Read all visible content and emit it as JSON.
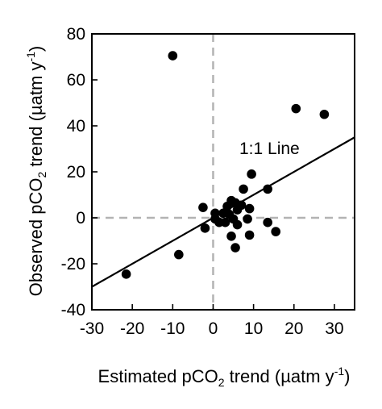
{
  "chart_data": {
    "type": "scatter",
    "xlabel": {
      "prefix": "Estimated pCO",
      "sub": "2",
      "mid": " trend (",
      "mu": "µ",
      "unit": "atm y",
      "sup": "-1",
      "suffix": ")"
    },
    "ylabel": {
      "prefix": "Observed pCO",
      "sub": "2",
      "mid": " trend (",
      "mu": "µ",
      "unit": "atm y",
      "sup": "-1",
      "suffix": ")"
    },
    "xlim": [
      -30,
      35
    ],
    "ylim": [
      -40,
      80
    ],
    "xticks": [
      -30,
      -20,
      -10,
      0,
      10,
      20,
      30
    ],
    "yticks": [
      -40,
      -20,
      0,
      20,
      40,
      60,
      80
    ],
    "xtick_labels": [
      "-30",
      "-20",
      "-10",
      "0",
      "10",
      "20",
      "30"
    ],
    "ytick_labels": [
      "-40",
      "-20",
      "0",
      "20",
      "40",
      "60",
      "80"
    ],
    "reference_lines": {
      "x_zero": true,
      "y_zero": true,
      "style": "dashed",
      "color": "#b3b3b3"
    },
    "one_to_one_line": {
      "label": "1:1 Line",
      "x": [
        -30,
        35
      ],
      "y": [
        -30,
        35
      ]
    },
    "points": [
      {
        "x": -10,
        "y": 70.5
      },
      {
        "x": 20.5,
        "y": 47.5
      },
      {
        "x": 27.5,
        "y": 45
      },
      {
        "x": 9.5,
        "y": 19
      },
      {
        "x": 13.5,
        "y": 12.5
      },
      {
        "x": 7.5,
        "y": 12.5
      },
      {
        "x": -2.5,
        "y": 4.5
      },
      {
        "x": 3.5,
        "y": 5
      },
      {
        "x": 4.5,
        "y": 7.5
      },
      {
        "x": 5.5,
        "y": 6.5
      },
      {
        "x": 7,
        "y": 5.5
      },
      {
        "x": 9,
        "y": 4
      },
      {
        "x": 6,
        "y": 3.5
      },
      {
        "x": 2.5,
        "y": 2
      },
      {
        "x": 4,
        "y": 1.5
      },
      {
        "x": 0.5,
        "y": 2
      },
      {
        "x": 0.5,
        "y": -0.5
      },
      {
        "x": 5,
        "y": -0.5
      },
      {
        "x": 8.5,
        "y": -0.5
      },
      {
        "x": 1.5,
        "y": -2
      },
      {
        "x": 3,
        "y": -2
      },
      {
        "x": 6,
        "y": -3
      },
      {
        "x": 13.5,
        "y": -2
      },
      {
        "x": -2,
        "y": -4.5
      },
      {
        "x": 15.5,
        "y": -6
      },
      {
        "x": 9,
        "y": -7.5
      },
      {
        "x": 4.5,
        "y": -8
      },
      {
        "x": 5.5,
        "y": -13
      },
      {
        "x": -8.5,
        "y": -16
      },
      {
        "x": -21.5,
        "y": -24.5
      }
    ],
    "colors": {
      "points": "#000000",
      "axes": "#000000",
      "zero_lines": "#b3b3b3"
    }
  }
}
